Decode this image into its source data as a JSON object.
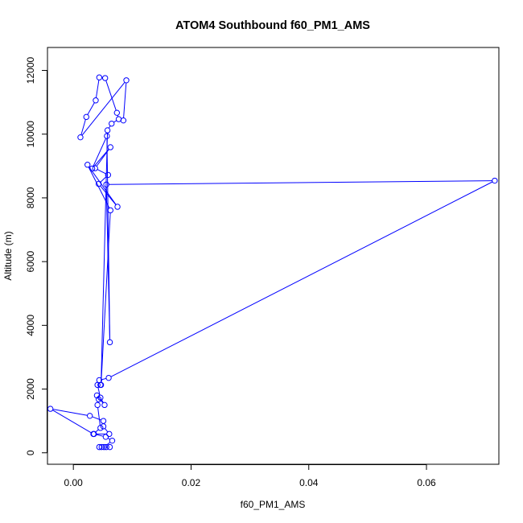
{
  "chart_data": {
    "type": "line",
    "title": "ATOM4 Southbound f60_PM1_AMS",
    "xlabel": "f60_PM1_AMS",
    "ylabel": "Altitude (m)",
    "xlim": [
      -0.0044,
      0.0723
    ],
    "ylim": [
      -360,
      12720
    ],
    "x_ticks": [
      {
        "value": 0.0,
        "label": "0.00"
      },
      {
        "value": 0.02,
        "label": "0.02"
      },
      {
        "value": 0.04,
        "label": "0.04"
      },
      {
        "value": 0.06,
        "label": "0.06"
      }
    ],
    "y_ticks": [
      {
        "value": 0,
        "label": "0"
      },
      {
        "value": 2000,
        "label": "2000"
      },
      {
        "value": 4000,
        "label": "4000"
      },
      {
        "value": 6000,
        "label": "6000"
      },
      {
        "value": 8000,
        "label": "8000"
      },
      {
        "value": 10000,
        "label": "10000"
      },
      {
        "value": 12000,
        "label": "12000"
      }
    ],
    "grid": false,
    "legend": "none",
    "series_color": "#0000ff",
    "series": [
      {
        "points": [
          {
            "x": 0.0048,
            "y": 180
          },
          {
            "x": 0.0056,
            "y": 180
          },
          {
            "x": 0.0062,
            "y": 180
          },
          {
            "x": 0.0044,
            "y": 180
          },
          {
            "x": 0.0052,
            "y": 180
          },
          {
            "x": 0.0066,
            "y": 380
          },
          {
            "x": 0.0055,
            "y": 500
          },
          {
            "x": 0.0035,
            "y": 590
          },
          {
            "x": 0.0061,
            "y": 590
          },
          {
            "x": 0.0051,
            "y": 830
          },
          {
            "x": 0.0051,
            "y": 1000
          },
          {
            "x": 0.0028,
            "y": 1160
          },
          {
            "x": -0.0039,
            "y": 1380
          },
          {
            "x": 0.0034,
            "y": 590
          },
          {
            "x": 0.0046,
            "y": 780
          },
          {
            "x": 0.0041,
            "y": 1500
          },
          {
            "x": 0.0043,
            "y": 1680
          },
          {
            "x": 0.004,
            "y": 1800
          },
          {
            "x": 0.0053,
            "y": 1500
          },
          {
            "x": 0.0046,
            "y": 1730
          },
          {
            "x": 0.0041,
            "y": 2130
          },
          {
            "x": 0.0046,
            "y": 2130
          },
          {
            "x": 0.0044,
            "y": 2280
          },
          {
            "x": 0.006,
            "y": 2350
          },
          {
            "x": 0.0716,
            "y": 8540
          },
          {
            "x": 0.0056,
            "y": 8420
          },
          {
            "x": 0.0062,
            "y": 3470
          },
          {
            "x": 0.0057,
            "y": 9940
          },
          {
            "x": 0.0032,
            "y": 8920
          },
          {
            "x": 0.0063,
            "y": 9590
          },
          {
            "x": 0.0037,
            "y": 8930
          },
          {
            "x": 0.0059,
            "y": 8720
          },
          {
            "x": 0.0043,
            "y": 8440
          },
          {
            "x": 0.0075,
            "y": 7720
          },
          {
            "x": 0.0024,
            "y": 9040
          },
          {
            "x": 0.0063,
            "y": 7610
          },
          {
            "x": 0.0047,
            "y": 2130
          },
          {
            "x": 0.0058,
            "y": 10120
          },
          {
            "x": 0.0065,
            "y": 10330
          },
          {
            "x": 0.0077,
            "y": 10470
          },
          {
            "x": 0.0074,
            "y": 10670
          },
          {
            "x": 0.0054,
            "y": 11760
          },
          {
            "x": 0.0044,
            "y": 11780
          },
          {
            "x": 0.0038,
            "y": 11060
          },
          {
            "x": 0.0022,
            "y": 10540
          },
          {
            "x": 0.0012,
            "y": 9900
          },
          {
            "x": 0.009,
            "y": 11690
          },
          {
            "x": 0.0085,
            "y": 10430
          }
        ]
      }
    ]
  }
}
